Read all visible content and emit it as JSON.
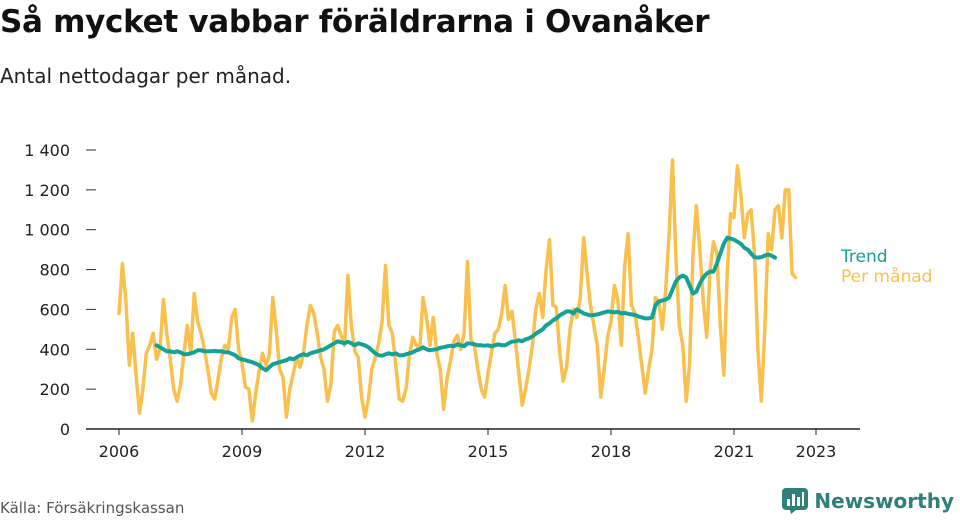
{
  "title": "Så mycket vabbar föräldrarna i Ovanåker",
  "subtitle": "Antal nettodagar per månad.",
  "source": "Källa: Försäkringskassan",
  "brand": {
    "name": "Newsworthy",
    "icon": "newsworthy-logo-icon",
    "color": "#2f7f7c"
  },
  "chart_data": {
    "type": "line",
    "x_start": "2006-01",
    "x_end": "2023-05",
    "x_unit": "month",
    "ylim": [
      0,
      1400
    ],
    "grid": false,
    "y_ticks": [
      {
        "value": 0,
        "label": "0"
      },
      {
        "value": 200,
        "label": "200"
      },
      {
        "value": 400,
        "label": "400"
      },
      {
        "value": 600,
        "label": "600"
      },
      {
        "value": 800,
        "label": "800"
      },
      {
        "value": 1000,
        "label": "1 000"
      },
      {
        "value": 1200,
        "label": "1 200"
      },
      {
        "value": 1400,
        "label": "1 400"
      }
    ],
    "x_ticks": [
      {
        "value": 2006,
        "label": "2006"
      },
      {
        "value": 2009,
        "label": "2009"
      },
      {
        "value": 2012,
        "label": "2012"
      },
      {
        "value": 2015,
        "label": "2015"
      },
      {
        "value": 2018,
        "label": "2018"
      },
      {
        "value": 2021,
        "label": "2021"
      },
      {
        "value": 2023,
        "label": "2023"
      }
    ],
    "series": [
      {
        "name": "Per månad",
        "color": "#f9c04e",
        "values": [
          580,
          830,
          650,
          320,
          480,
          270,
          80,
          200,
          380,
          420,
          480,
          350,
          400,
          650,
          480,
          350,
          200,
          140,
          220,
          380,
          520,
          380,
          680,
          540,
          480,
          400,
          300,
          180,
          150,
          250,
          360,
          420,
          400,
          560,
          600,
          400,
          330,
          210,
          200,
          40,
          180,
          290,
          380,
          320,
          370,
          660,
          500,
          300,
          260,
          60,
          200,
          280,
          360,
          310,
          380,
          520,
          620,
          580,
          480,
          360,
          300,
          140,
          220,
          490,
          520,
          470,
          420,
          770,
          520,
          390,
          360,
          160,
          60,
          150,
          300,
          360,
          430,
          540,
          820,
          520,
          480,
          320,
          150,
          140,
          200,
          370,
          460,
          420,
          400,
          660,
          560,
          420,
          560,
          380,
          300,
          100,
          250,
          340,
          440,
          470,
          400,
          480,
          840,
          450,
          420,
          300,
          200,
          160,
          280,
          380,
          480,
          500,
          580,
          720,
          550,
          590,
          450,
          280,
          120,
          200,
          300,
          420,
          600,
          680,
          560,
          800,
          950,
          620,
          610,
          380,
          240,
          310,
          500,
          600,
          560,
          660,
          960,
          780,
          620,
          520,
          420,
          160,
          300,
          460,
          540,
          720,
          650,
          420,
          820,
          980,
          620,
          580,
          460,
          320,
          180,
          300,
          400,
          660,
          640,
          500,
          700,
          980,
          1350,
          860,
          520,
          420,
          140,
          330,
          880,
          1120,
          900,
          640,
          460,
          800,
          940,
          880,
          520,
          270,
          780,
          1080,
          1060,
          1320,
          1180,
          960,
          1080,
          1100,
          880,
          400,
          140,
          500,
          980,
          900,
          1100,
          1120,
          960,
          1200,
          1200,
          780,
          760
        ]
      },
      {
        "name": "Trend",
        "color": "#14a197",
        "start": "2006-12",
        "values": [
          420,
          410,
          400,
          390,
          390,
          385,
          390,
          385,
          375,
          375,
          380,
          385,
          395,
          395,
          390,
          390,
          390,
          392,
          390,
          390,
          385,
          385,
          378,
          370,
          355,
          350,
          345,
          340,
          335,
          328,
          320,
          305,
          295,
          310,
          325,
          330,
          335,
          340,
          345,
          355,
          350,
          360,
          370,
          375,
          370,
          380,
          385,
          390,
          395,
          400,
          410,
          420,
          430,
          440,
          435,
          430,
          438,
          430,
          420,
          430,
          425,
          420,
          410,
          395,
          380,
          370,
          368,
          375,
          380,
          375,
          380,
          370,
          370,
          375,
          380,
          385,
          395,
          400,
          410,
          400,
          395,
          398,
          400,
          408,
          410,
          415,
          418,
          415,
          425,
          420,
          415,
          430,
          428,
          425,
          420,
          420,
          418,
          420,
          415,
          420,
          425,
          420,
          420,
          430,
          438,
          440,
          445,
          440,
          450,
          455,
          465,
          478,
          490,
          500,
          520,
          530,
          545,
          555,
          570,
          580,
          590,
          590,
          580,
          600,
          590,
          580,
          575,
          570,
          572,
          575,
          580,
          585,
          590,
          588,
          585,
          588,
          580,
          582,
          578,
          575,
          572,
          565,
          560,
          555,
          555,
          560,
          620,
          640,
          645,
          650,
          660,
          700,
          740,
          760,
          770,
          760,
          720,
          680,
          690,
          730,
          760,
          780,
          790,
          790,
          830,
          880,
          930,
          960,
          955,
          950,
          940,
          930,
          910,
          900,
          880,
          862,
          860,
          862,
          870,
          875,
          870,
          860
        ]
      }
    ]
  }
}
